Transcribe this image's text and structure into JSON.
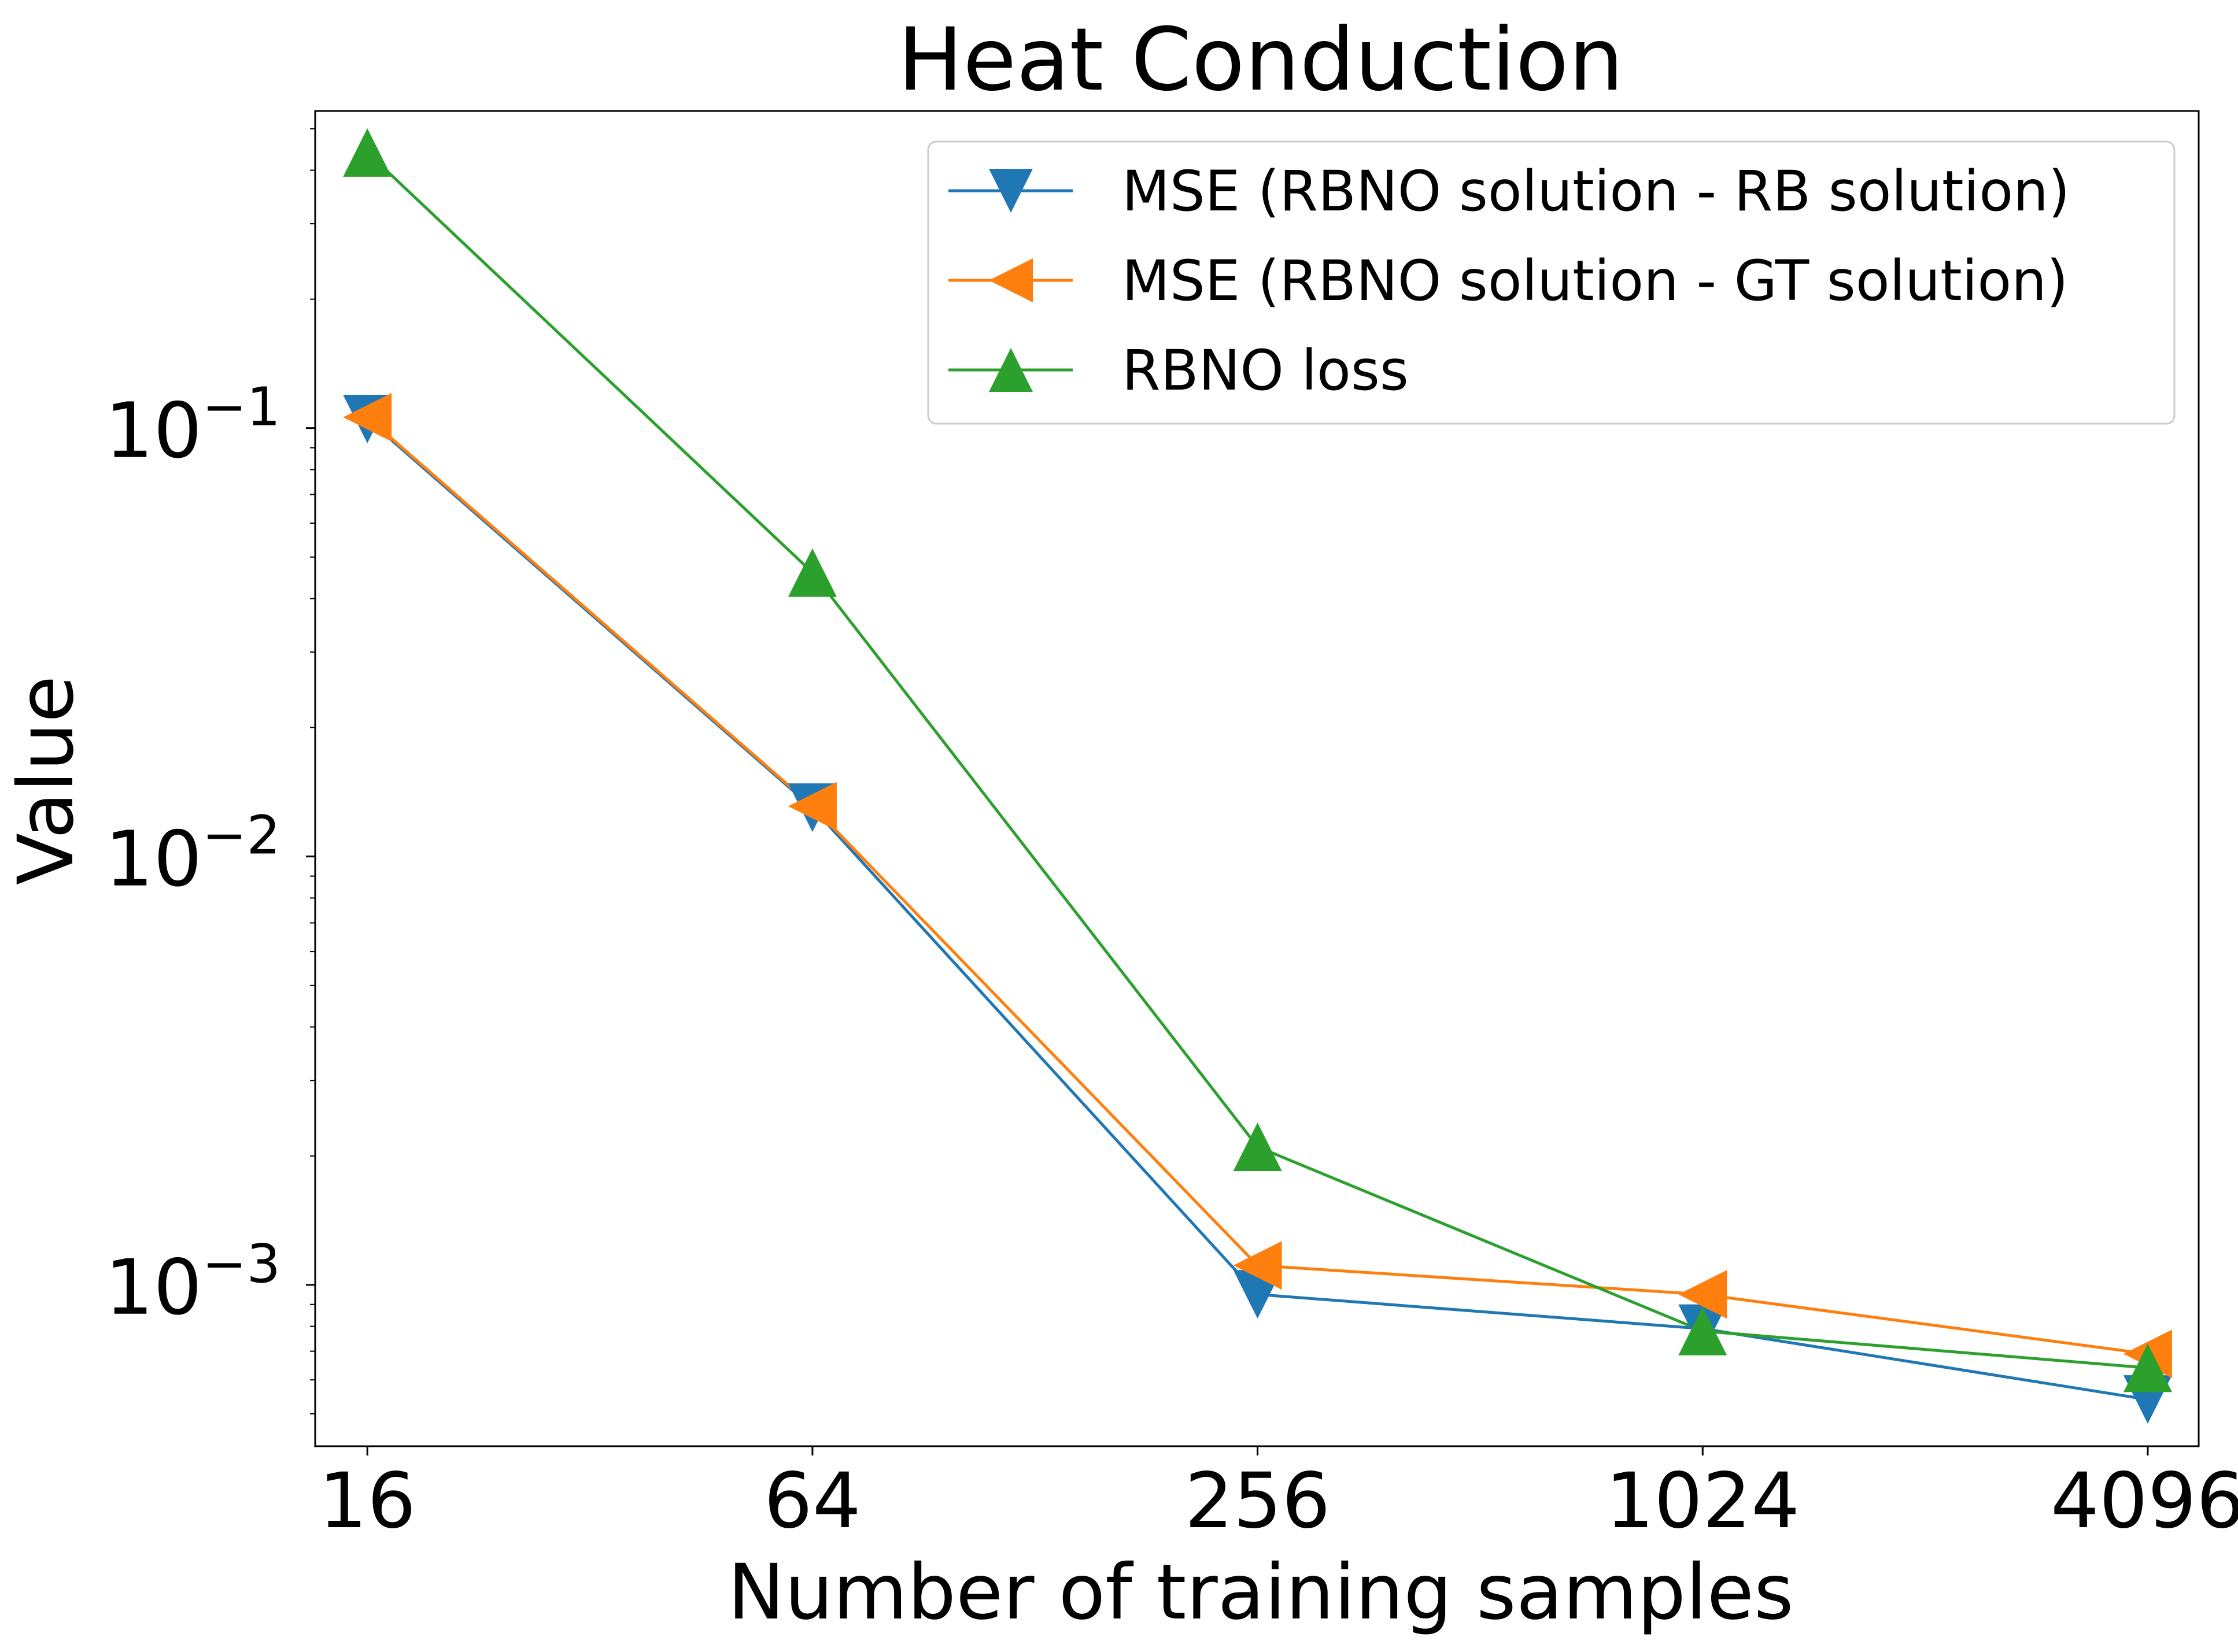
{
  "chart_data": {
    "type": "line",
    "title": "Heat Conduction",
    "xlabel": "Number of training samples",
    "ylabel": "Value",
    "x_scale": "log2",
    "y_scale": "log10",
    "categories": [
      "16",
      "64",
      "256",
      "1024",
      "4096"
    ],
    "x": [
      16,
      64,
      256,
      1024,
      4096
    ],
    "y_ticks": [
      {
        "base": "10",
        "exp": "−1",
        "value": 0.1
      },
      {
        "base": "10",
        "exp": "−2",
        "value": 0.01
      },
      {
        "base": "10",
        "exp": "−3",
        "value": 0.001
      }
    ],
    "ylim": [
      0.00042,
      0.55
    ],
    "xlim": [
      13.6,
      4800
    ],
    "legend_position": "top-right",
    "series": [
      {
        "name": "MSE (RBNO solution - RB solution)",
        "color": "#1f77b4",
        "marker": "triangle-down",
        "values": [
          0.105,
          0.013,
          0.00095,
          0.00079,
          0.00054
        ]
      },
      {
        "name": "MSE (RBNO solution - GT solution)",
        "color": "#ff7f0e",
        "marker": "triangle-left",
        "values": [
          0.106,
          0.0131,
          0.00111,
          0.00095,
          0.00069
        ]
      },
      {
        "name": "RBNO loss",
        "color": "#2ca02c",
        "marker": "triangle-up",
        "values": [
          0.44,
          0.046,
          0.0021,
          0.00078,
          0.00064
        ]
      }
    ]
  }
}
